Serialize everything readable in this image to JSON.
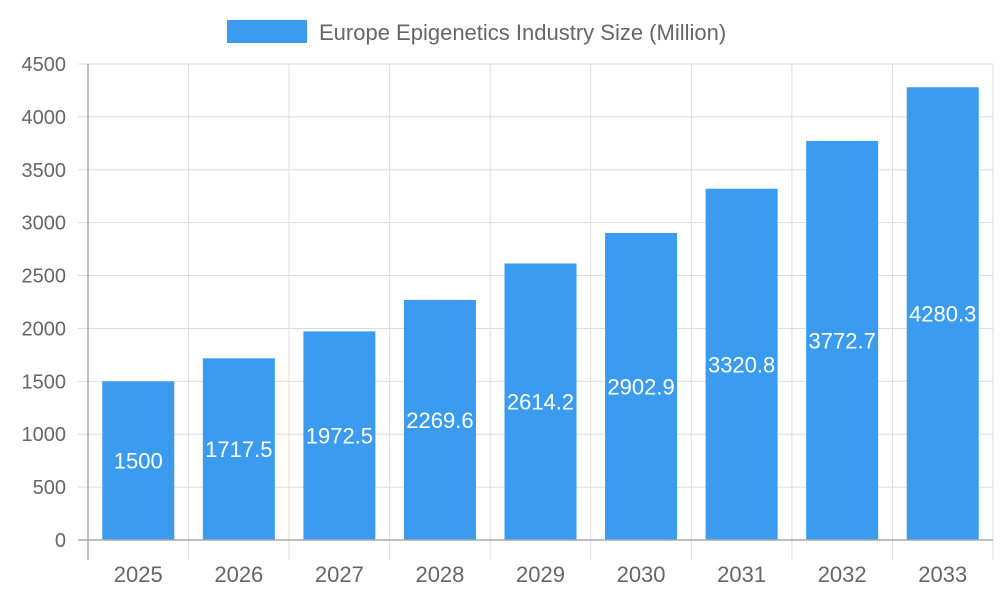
{
  "chart_data": {
    "type": "bar",
    "title": "",
    "xlabel": "",
    "ylabel": "",
    "categories": [
      "2025",
      "2026",
      "2027",
      "2028",
      "2029",
      "2030",
      "2031",
      "2032",
      "2033"
    ],
    "series": [
      {
        "name": "Europe Epigenetics Industry Size (Million)",
        "values": [
          1500,
          1717.5,
          1972.5,
          2269.6,
          2614.2,
          2902.9,
          3320.8,
          3772.7,
          4280.3
        ]
      }
    ],
    "ylim": [
      0,
      4500
    ],
    "yticks": [
      0,
      500,
      1000,
      1500,
      2000,
      2500,
      3000,
      3500,
      4000,
      4500
    ],
    "grid": true,
    "legend": "top-center",
    "data_labels": true,
    "colors": {
      "bar": "#3a9bef",
      "grid": "#dddddd",
      "text": "#666666",
      "label": "#ffffff"
    }
  }
}
